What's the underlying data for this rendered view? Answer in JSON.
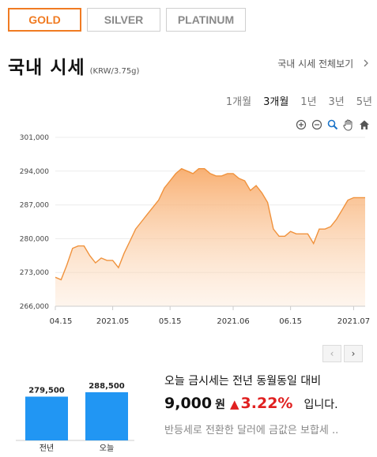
{
  "metal_tabs": [
    {
      "label": "GOLD",
      "active": true
    },
    {
      "label": "SILVER",
      "active": false
    },
    {
      "label": "PLATINUM",
      "active": false
    }
  ],
  "header": {
    "title": "국내 시세",
    "unit": "(KRW/3.75g)",
    "view_all": "국내 시세 전체보기",
    "view_all_icon": "chevron-right-icon"
  },
  "periods": [
    {
      "label": "1개월",
      "active": false
    },
    {
      "label": "3개월",
      "active": true
    },
    {
      "label": "1년",
      "active": false
    },
    {
      "label": "3년",
      "active": false
    },
    {
      "label": "5년",
      "active": false
    }
  ],
  "chart_tools": [
    "zoom-in-icon",
    "zoom-out-icon",
    "magnifier-icon",
    "pan-hand-icon",
    "home-icon"
  ],
  "colors": {
    "accent": "#f07b22",
    "area_top": "#f7a35c",
    "bar": "#2196f3",
    "up": "#e02020"
  },
  "chart_data": [
    {
      "type": "area",
      "ylim": [
        266000,
        301000
      ],
      "y_ticks": [
        "266,000",
        "273,000",
        "280,000",
        "287,000",
        "294,000",
        "301,000"
      ],
      "y_tick_values": [
        266000,
        273000,
        280000,
        287000,
        294000,
        301000
      ],
      "x_ticks": [
        "04.15",
        "2021.05",
        "05.15",
        "2021.06",
        "06.15",
        "2021.07"
      ],
      "x_tick_index": [
        0,
        10,
        20,
        31,
        41,
        52
      ],
      "grid": true,
      "values": [
        272000,
        271500,
        274500,
        278000,
        278500,
        278500,
        276500,
        275000,
        276000,
        275500,
        275500,
        274000,
        277000,
        279500,
        282000,
        283500,
        285000,
        286500,
        288000,
        290500,
        292000,
        293500,
        294500,
        294000,
        293500,
        294500,
        294500,
        293500,
        293000,
        293000,
        293500,
        293500,
        292500,
        292000,
        290000,
        291000,
        289500,
        287500,
        282000,
        280500,
        280500,
        281500,
        281000,
        281000,
        281000,
        279000,
        282000,
        282000,
        282500,
        284000,
        286000,
        288000,
        288500,
        288500,
        288500
      ]
    },
    {
      "type": "bar",
      "categories": [
        "전년",
        "오늘"
      ],
      "values": [
        279500,
        288500
      ],
      "value_labels": [
        "279,500",
        "288,500"
      ]
    }
  ],
  "pager": {
    "prev": "‹",
    "next": "›"
  },
  "summary": {
    "line1": "오늘 금시세는 전년 동월동일 대비",
    "amount": "9,000",
    "won": "원",
    "arrow": "▲",
    "pct": "3.22%",
    "tail": "입니다.",
    "line3": "반등세로 전환한 달러에 금값은 보합세 .."
  }
}
